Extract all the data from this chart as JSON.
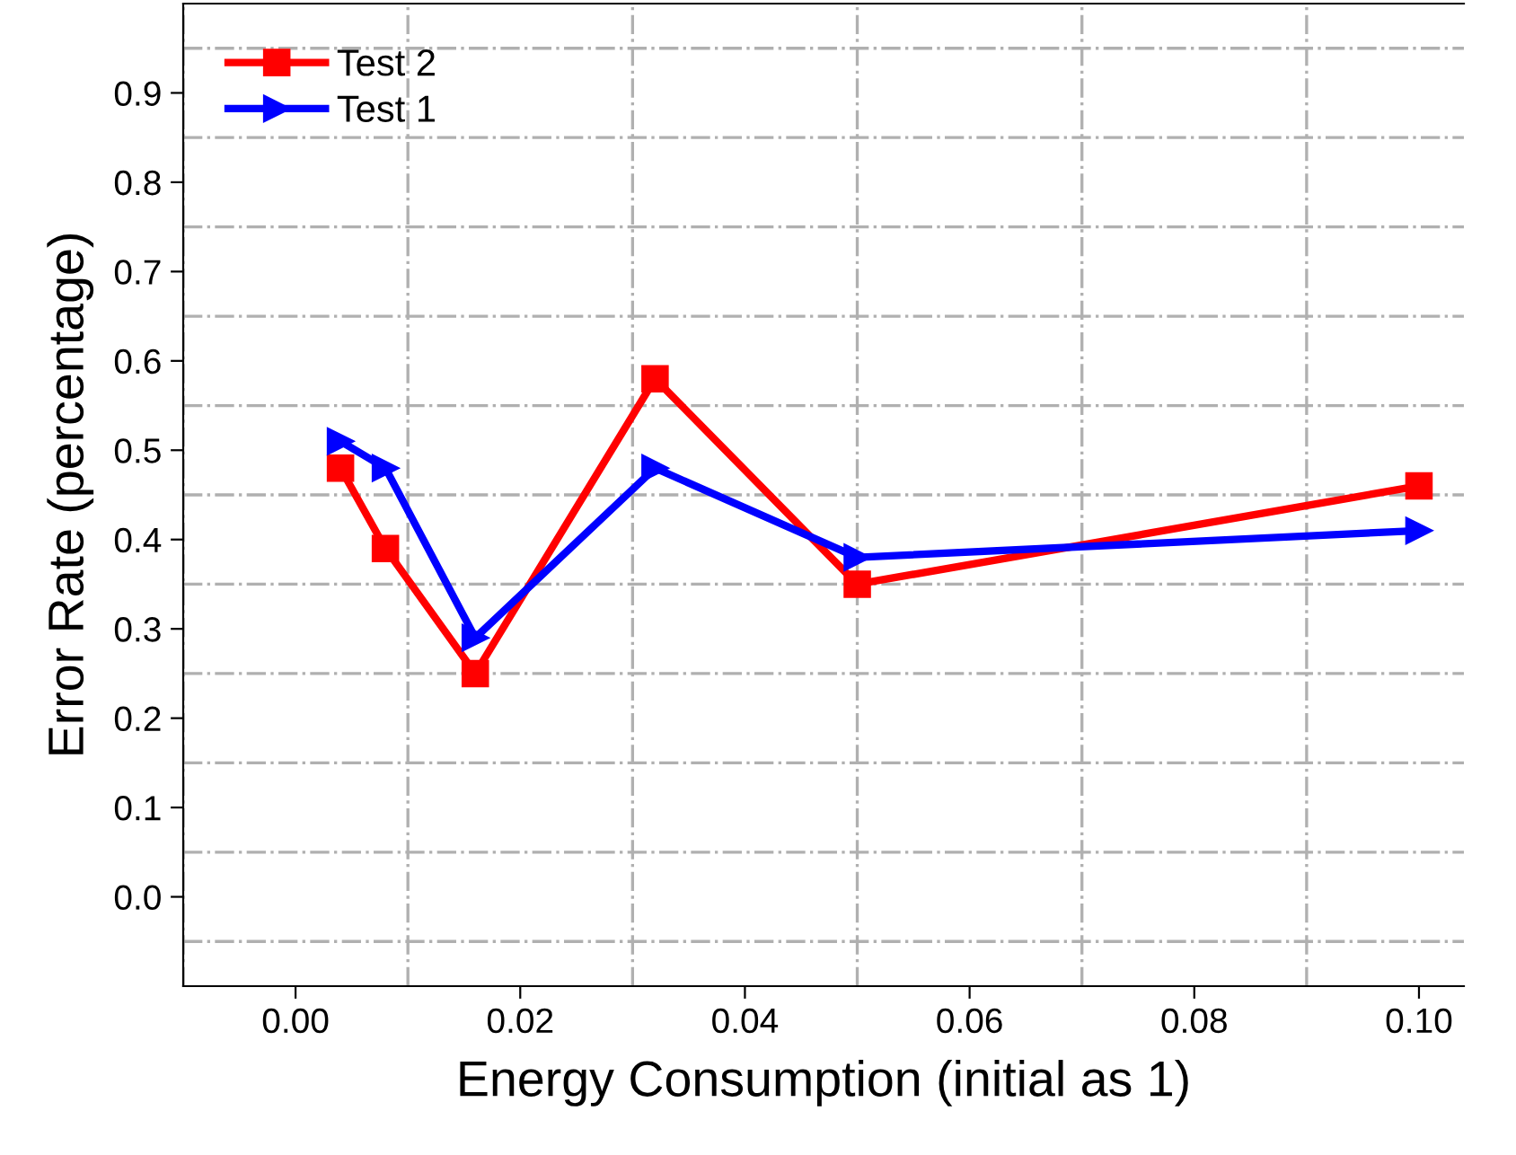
{
  "chart_data": {
    "type": "line",
    "xlabel": "Energy Consumption (initial as 1)",
    "ylabel": "Error Rate (percentage)",
    "xlim": [
      -0.01,
      0.104
    ],
    "xticks": [
      {
        "value": 0.0,
        "label": "0.00"
      },
      {
        "value": 0.02,
        "label": "0.02"
      },
      {
        "value": 0.04,
        "label": "0.04"
      },
      {
        "value": 0.06,
        "label": "0.06"
      },
      {
        "value": 0.08,
        "label": "0.08"
      },
      {
        "value": 0.1,
        "label": "0.10"
      }
    ],
    "ylim": [
      -0.1,
      1.0
    ],
    "yticks": [
      {
        "value": 0.0,
        "label": "0.0"
      },
      0.1,
      0.2,
      0.3,
      0.4,
      0.5,
      0.6,
      0.7,
      0.8,
      0.9
    ],
    "grid": true,
    "legend": "top left",
    "line_style": "solid",
    "series": [
      {
        "name": "Test 2",
        "color": "#ff0000",
        "marker": "square",
        "x": [
          0.004,
          0.008,
          0.016,
          0.032,
          0.05,
          0.1
        ],
        "values": [
          0.48,
          0.39,
          0.25,
          0.58,
          0.35,
          0.46
        ]
      },
      {
        "name": "Test 1",
        "color": "#0000ff",
        "marker": "triangle",
        "x": [
          0.004,
          0.008,
          0.016,
          0.032,
          0.05,
          0.1
        ],
        "values": [
          0.51,
          0.48,
          0.29,
          0.48,
          0.38,
          0.41
        ]
      }
    ]
  }
}
